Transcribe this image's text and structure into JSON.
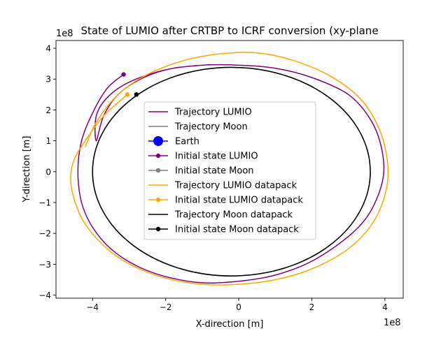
{
  "chart_data": {
    "type": "line",
    "title": "State of LUMIO after CRTBP to ICRF conversion (xy-plane",
    "xlabel": "X-direction [m]",
    "ylabel": "Y-direction [m]",
    "x_offset_text": "1e8",
    "y_offset_text": "1e8",
    "x_scale_factor": 100000000,
    "y_scale_factor": 100000000,
    "xlim": [
      -5.0,
      4.5
    ],
    "ylim": [
      -4.1,
      4.25
    ],
    "xticks": [
      -4,
      -2,
      0,
      2,
      4
    ],
    "yticks": [
      -4,
      -3,
      -2,
      -1,
      0,
      1,
      2,
      3,
      4
    ],
    "x_tick_labels": [
      "−4",
      "−2",
      "0",
      "2",
      "4"
    ],
    "y_tick_labels": [
      "−4",
      "−3",
      "−2",
      "−1",
      "0",
      "1",
      "2",
      "3",
      "4"
    ],
    "grid": false,
    "legend_position": "center",
    "series": [
      {
        "name": "Trajectory LUMIO",
        "color": "#800080",
        "kind": "line",
        "x": [
          -3.15,
          -3.6,
          -4.0,
          -4.3,
          -4.4,
          -4.3,
          -4.0,
          -3.5,
          -2.8,
          -2.0,
          -1.0,
          0.0,
          1.0,
          2.0,
          3.0,
          3.6,
          3.95,
          3.9,
          3.6,
          3.0,
          2.0,
          1.0,
          0.0,
          -1.0,
          -2.0,
          -3.0,
          -3.6,
          -3.9,
          -3.9,
          -3.7,
          -3.3,
          -2.6,
          -1.8,
          -0.8
        ],
        "y": [
          3.15,
          2.7,
          1.9,
          1.0,
          0.0,
          -1.0,
          -1.8,
          -2.5,
          -3.05,
          -3.4,
          -3.6,
          -3.55,
          -3.35,
          -2.9,
          -2.1,
          -1.3,
          -0.2,
          0.8,
          1.7,
          2.5,
          3.05,
          3.35,
          3.45,
          3.45,
          3.3,
          2.9,
          2.4,
          1.8,
          1.0,
          1.8,
          2.5,
          3.05,
          3.35,
          3.47
        ]
      },
      {
        "name": "Trajectory Moon",
        "color": "#808080",
        "kind": "line",
        "x": [],
        "y": []
      },
      {
        "name": "Earth",
        "color": "#0000ff",
        "kind": "marker",
        "x": [
          0.0
        ],
        "y": [
          0.0
        ]
      },
      {
        "name": "Initial state LUMIO",
        "color": "#800080",
        "kind": "marker",
        "x": [
          -3.15
        ],
        "y": [
          3.15
        ]
      },
      {
        "name": "Initial state Moon",
        "color": "#808080",
        "kind": "marker",
        "x": [
          -2.8
        ],
        "y": [
          2.5
        ]
      },
      {
        "name": "Trajectory LUMIO datapack",
        "color": "#ffa500",
        "kind": "line",
        "x": [
          -3.05,
          -3.7,
          -4.2,
          -4.5,
          -4.6,
          -4.5,
          -4.2,
          -3.6,
          -2.9,
          -2.0,
          -1.0,
          0.0,
          1.0,
          2.0,
          3.0,
          3.7,
          4.05,
          4.05,
          3.8,
          3.3,
          2.5,
          1.5,
          0.5,
          -0.5,
          -1.5,
          -2.5,
          -3.3,
          -3.9,
          -4.2
        ],
        "y": [
          2.5,
          1.8,
          1.0,
          0.4,
          -0.2,
          -0.9,
          -1.7,
          -2.5,
          -3.05,
          -3.45,
          -3.65,
          -3.65,
          -3.5,
          -3.15,
          -2.5,
          -1.6,
          -0.5,
          0.5,
          1.5,
          2.4,
          3.1,
          3.6,
          3.85,
          3.82,
          3.6,
          3.15,
          2.5,
          1.6,
          0.8
        ]
      },
      {
        "name": "Initial state LUMIO datapack",
        "color": "#ffa500",
        "kind": "marker",
        "x": [
          -3.05
        ],
        "y": [
          2.5
        ]
      },
      {
        "name": "Trajectory Moon datapack",
        "color": "#000000",
        "kind": "ellipse",
        "center": [
          -0.2,
          0.0
        ],
        "radius": [
          3.8,
          3.38
        ]
      },
      {
        "name": "Initial state Moon datapack",
        "color": "#000000",
        "kind": "marker",
        "x": [
          -2.8
        ],
        "y": [
          2.5
        ]
      }
    ]
  }
}
